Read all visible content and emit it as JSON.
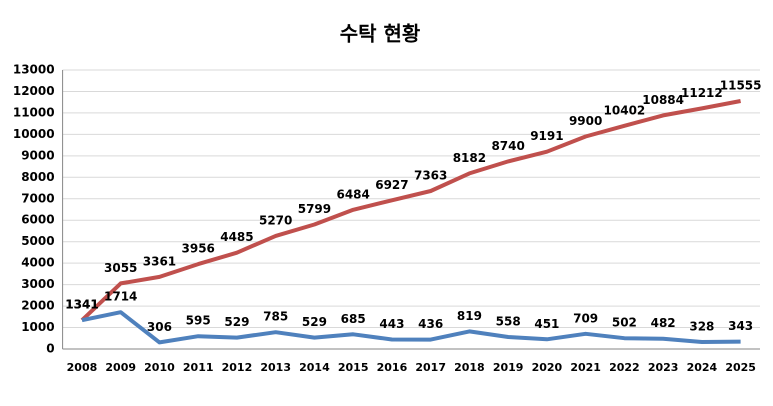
{
  "chart_data": {
    "type": "line",
    "title": "수탁 현황",
    "categories": [
      "2008",
      "2009",
      "2010",
      "2011",
      "2012",
      "2013",
      "2014",
      "2015",
      "2016",
      "2017",
      "2018",
      "2019",
      "2020",
      "2021",
      "2022",
      "2023",
      "2024",
      "2025"
    ],
    "series": [
      {
        "color": "#c0504d",
        "values": [
          1341,
          3055,
          3361,
          3956,
          4485,
          5270,
          5799,
          6484,
          6927,
          7363,
          8182,
          8740,
          9191,
          9900,
          10402,
          10884,
          11212,
          11555
        ]
      },
      {
        "color": "#4f81bd",
        "values": [
          1341,
          1714,
          306,
          595,
          529,
          785,
          529,
          685,
          443,
          436,
          819,
          558,
          451,
          709,
          502,
          482,
          328,
          343
        ]
      }
    ],
    "ylim": [
      0,
      13000
    ],
    "yticks": [
      0,
      1000,
      2000,
      3000,
      4000,
      5000,
      6000,
      7000,
      8000,
      9000,
      10000,
      11000,
      12000,
      13000
    ],
    "grid": true
  }
}
